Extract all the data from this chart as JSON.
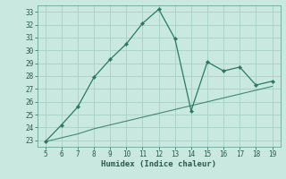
{
  "xlabel": "Humidex (Indice chaleur)",
  "x_data": [
    5,
    6,
    7,
    8,
    9,
    10,
    11,
    12,
    13,
    14,
    15,
    16,
    17,
    18,
    19
  ],
  "y_line1": [
    22.9,
    24.2,
    25.6,
    27.9,
    29.3,
    30.5,
    32.1,
    33.2,
    30.9,
    25.3,
    29.1,
    28.4,
    28.7,
    27.3,
    27.6
  ],
  "y_line2": [
    22.9,
    23.2,
    23.5,
    23.9,
    24.2,
    24.5,
    24.8,
    25.1,
    25.4,
    25.7,
    26.0,
    26.3,
    26.6,
    26.9,
    27.2
  ],
  "line_color": "#2a7a62",
  "bg_color": "#c8e8e0",
  "grid_color": "#aacfc7",
  "ylim": [
    22.5,
    33.5
  ],
  "xlim": [
    4.5,
    19.5
  ],
  "yticks": [
    23,
    24,
    25,
    26,
    27,
    28,
    29,
    30,
    31,
    32,
    33
  ],
  "xticks": [
    5,
    6,
    7,
    8,
    9,
    10,
    11,
    12,
    13,
    14,
    15,
    16,
    17,
    18,
    19
  ],
  "tick_fontsize": 5.5,
  "xlabel_fontsize": 6.5
}
